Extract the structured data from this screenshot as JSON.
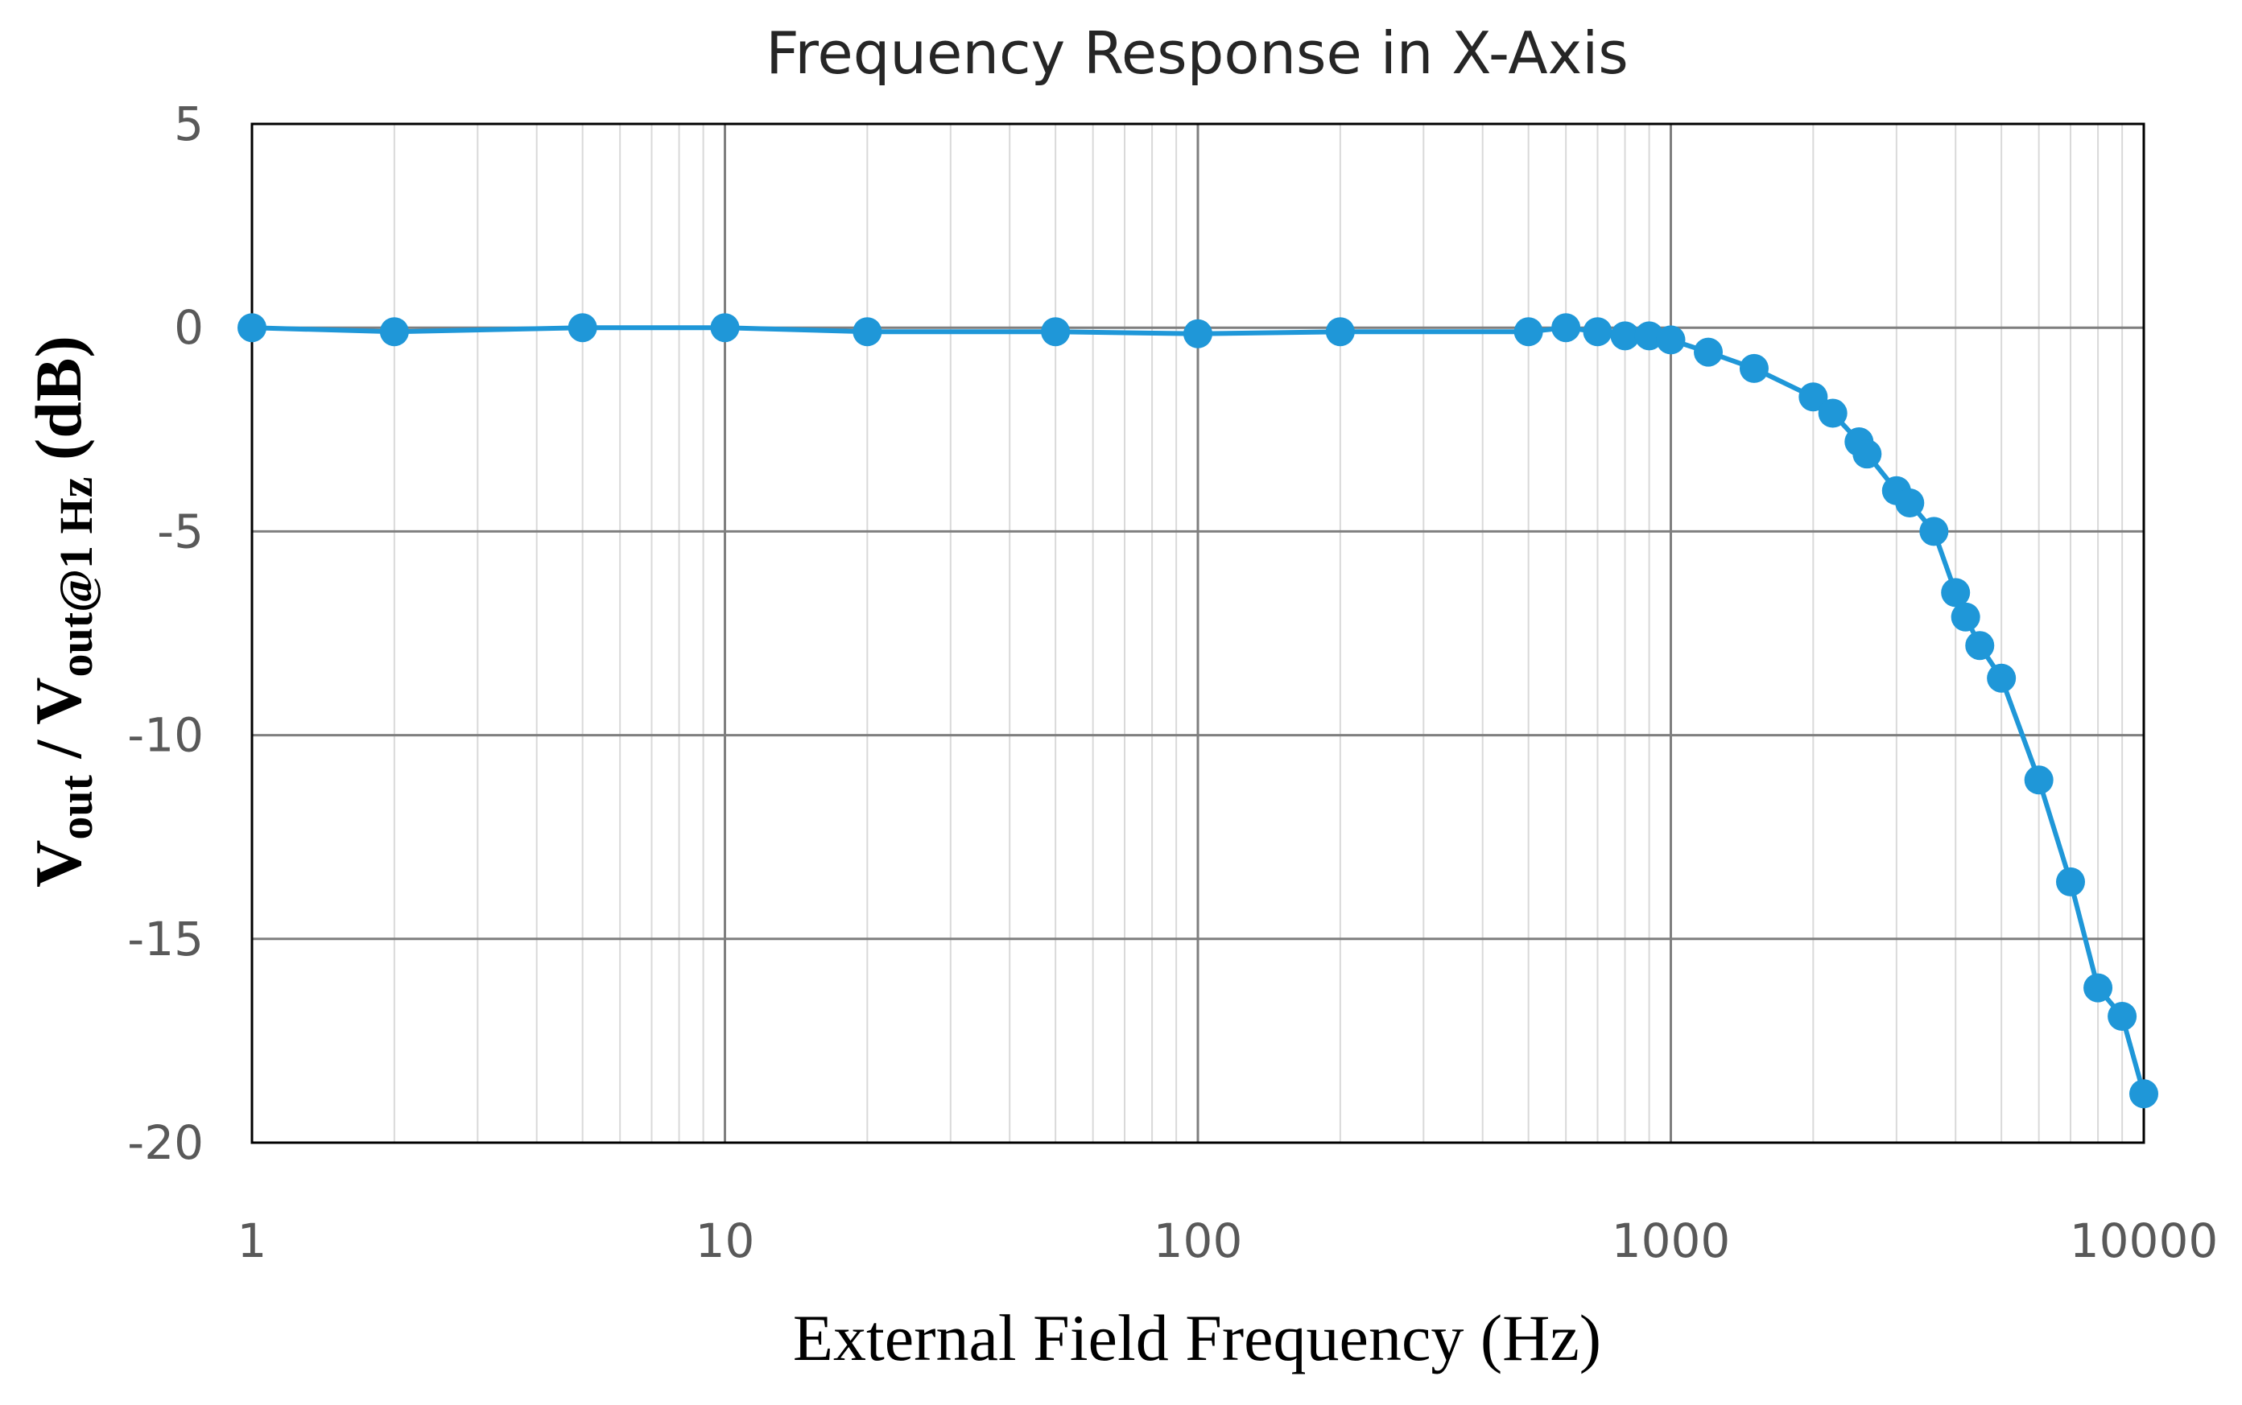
{
  "chart_data": {
    "type": "line",
    "title": "Frequency Response in X-Axis",
    "xlabel": "External  Field  Frequency  (Hz)",
    "ylabel": {
      "v1": "V",
      "s1": "out",
      "mid": " / V",
      "s2": "out@1 Hz",
      "end": "  (dB)"
    },
    "x_scale": "log",
    "xlim": [
      1,
      10000
    ],
    "ylim": [
      -20,
      5
    ],
    "x_ticks": [
      {
        "value": 1,
        "label": "1"
      },
      {
        "value": 10,
        "label": "10"
      },
      {
        "value": 100,
        "label": "100"
      },
      {
        "value": 1000,
        "label": "1000"
      },
      {
        "value": 10000,
        "label": "10000"
      }
    ],
    "y_ticks": [
      {
        "value": 5,
        "label": "5"
      },
      {
        "value": 0,
        "label": "0"
      },
      {
        "value": -5,
        "label": "-5"
      },
      {
        "value": -10,
        "label": "-10"
      },
      {
        "value": -15,
        "label": "-15"
      },
      {
        "value": -20,
        "label": "-20"
      }
    ],
    "grid": {
      "major": true,
      "minor_x": true
    },
    "legend": "none",
    "series": [
      {
        "color": "#1f97d8",
        "x": [
          1,
          2,
          5,
          10,
          20,
          50,
          100,
          200,
          500,
          600,
          700,
          800,
          900,
          1000,
          1200,
          1500,
          2000,
          2200,
          2500,
          2600,
          3000,
          3200,
          3600,
          4000,
          4200,
          4500,
          5000,
          6000,
          7000,
          8000,
          9000,
          10000
        ],
        "y": [
          0.0,
          -0.1,
          0.0,
          0.0,
          -0.1,
          -0.1,
          -0.15,
          -0.1,
          -0.1,
          0.0,
          -0.1,
          -0.2,
          -0.2,
          -0.3,
          -0.6,
          -1.0,
          -1.7,
          -2.1,
          -2.8,
          -3.1,
          -4.0,
          -4.3,
          -5.0,
          -6.5,
          -7.1,
          -7.8,
          -8.6,
          -11.1,
          -13.6,
          -16.2,
          -16.9,
          -18.8
        ]
      }
    ],
    "colors": {
      "line": "#1f97d8",
      "grid_major": "#7f7f7f",
      "grid_minor": "#d9d9d9",
      "frame": "#000000"
    }
  }
}
